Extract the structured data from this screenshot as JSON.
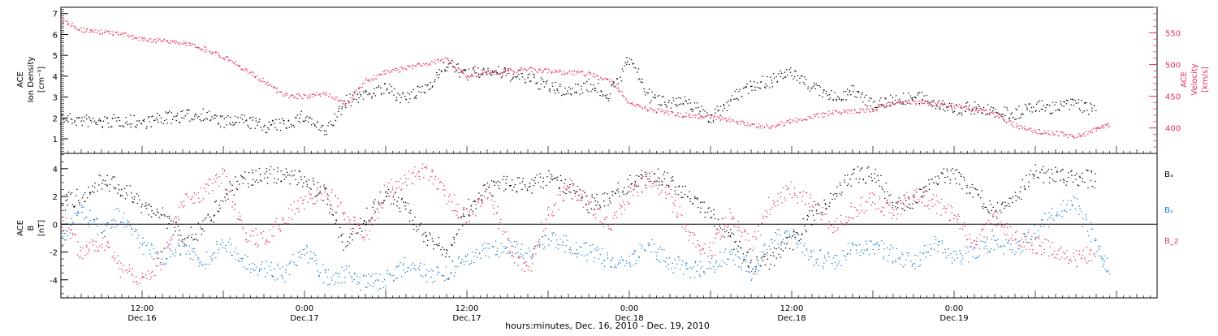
{
  "chart_data": [
    {
      "type": "scatter",
      "panel": "solar-wind",
      "ylabel_left": [
        "ACE",
        "Ion Density",
        "[cm⁻³]"
      ],
      "ylabel_right": [
        "ACE",
        "Velocity",
        "[km/s]"
      ],
      "ylim_left": [
        0.3,
        7.3
      ],
      "ylim_right": [
        360,
        590
      ],
      "yticks_left": [
        1,
        2,
        3,
        4,
        5,
        6,
        7
      ],
      "yticks_right": [
        400,
        450,
        500,
        550
      ],
      "series": [
        {
          "axis": "left",
          "color": "#000000",
          "points": [
            [
              0,
              2
            ],
            [
              3,
              1.9
            ],
            [
              6,
              1.8
            ],
            [
              9,
              1.9
            ],
            [
              12,
              1.8
            ],
            [
              15,
              2
            ],
            [
              18,
              2.1
            ],
            [
              21,
              2.2
            ],
            [
              24,
              1.8
            ],
            [
              27,
              1.9
            ],
            [
              30,
              1.6
            ],
            [
              33,
              1.7
            ],
            [
              36,
              2.1
            ],
            [
              39,
              1.3
            ],
            [
              42,
              2.8
            ],
            [
              45,
              3.2
            ],
            [
              48,
              3.4
            ],
            [
              51,
              2.9
            ],
            [
              54,
              3.5
            ],
            [
              57,
              4.6
            ],
            [
              60,
              4.1
            ],
            [
              63,
              4.3
            ],
            [
              66,
              4.1
            ],
            [
              69,
              3.9
            ],
            [
              72,
              3.5
            ],
            [
              75,
              3.3
            ],
            [
              78,
              3.6
            ],
            [
              81,
              3.1
            ],
            [
              84,
              4.9
            ],
            [
              87,
              3
            ],
            [
              90,
              2.8
            ],
            [
              93,
              2.7
            ],
            [
              96,
              2
            ],
            [
              99,
              2.9
            ],
            [
              102,
              3.6
            ],
            [
              105,
              3.8
            ],
            [
              108,
              4.2
            ],
            [
              111,
              3.5
            ],
            [
              114,
              3
            ],
            [
              117,
              3.3
            ],
            [
              120,
              2.7
            ],
            [
              123,
              2.9
            ],
            [
              126,
              3
            ],
            [
              129,
              2.8
            ],
            [
              132,
              2.4
            ],
            [
              135,
              2.5
            ],
            [
              138,
              2.3
            ],
            [
              141,
              2.2
            ],
            [
              144,
              2.6
            ],
            [
              147,
              2.5
            ],
            [
              150,
              2.7
            ],
            [
              153,
              2.3
            ]
          ]
        },
        {
          "axis": "right",
          "color": "#e8305d",
          "points": [
            [
              0,
              570
            ],
            [
              3,
              555
            ],
            [
              6,
              552
            ],
            [
              9,
              548
            ],
            [
              12,
              540
            ],
            [
              15,
              538
            ],
            [
              18,
              535
            ],
            [
              21,
              526
            ],
            [
              24,
              513
            ],
            [
              27,
              494
            ],
            [
              30,
              473
            ],
            [
              33,
              452
            ],
            [
              36,
              450
            ],
            [
              39,
              455
            ],
            [
              42,
              438
            ],
            [
              45,
              475
            ],
            [
              48,
              488
            ],
            [
              51,
              495
            ],
            [
              54,
              502
            ],
            [
              57,
              508
            ],
            [
              60,
              482
            ],
            [
              63,
              487
            ],
            [
              66,
              490
            ],
            [
              69,
              493
            ],
            [
              72,
              490
            ],
            [
              75,
              488
            ],
            [
              78,
              485
            ],
            [
              81,
              476
            ],
            [
              84,
              440
            ],
            [
              87,
              430
            ],
            [
              90,
              423
            ],
            [
              93,
              420
            ],
            [
              96,
              418
            ],
            [
              99,
              413
            ],
            [
              102,
              405
            ],
            [
              105,
              403
            ],
            [
              108,
              412
            ],
            [
              111,
              418
            ],
            [
              114,
              425
            ],
            [
              117,
              427
            ],
            [
              120,
              430
            ],
            [
              123,
              440
            ],
            [
              126,
              442
            ],
            [
              129,
              438
            ],
            [
              132,
              435
            ],
            [
              135,
              430
            ],
            [
              138,
              423
            ],
            [
              141,
              405
            ],
            [
              144,
              396
            ],
            [
              147,
              392
            ],
            [
              150,
              387
            ],
            [
              153,
              398
            ],
            [
              155,
              407
            ]
          ]
        }
      ]
    },
    {
      "type": "scatter",
      "panel": "magnetic-field",
      "ylabel": [
        "ACE",
        "B",
        "[nT]"
      ],
      "ylim": [
        -5.3,
        5.1
      ],
      "yticks": [
        -4,
        -2,
        0,
        2,
        4
      ],
      "zero_line": true,
      "legend": [
        "Bₓ",
        "Bᵧ",
        "B_z"
      ],
      "series": [
        {
          "name": "Bₓ",
          "color": "#000000",
          "points": [
            [
              0,
              1.6
            ],
            [
              3,
              2
            ],
            [
              6,
              3.2
            ],
            [
              9,
              2.6
            ],
            [
              12,
              1.5
            ],
            [
              15,
              0.6
            ],
            [
              18,
              -1
            ],
            [
              21,
              -0.3
            ],
            [
              24,
              2.2
            ],
            [
              27,
              3.3
            ],
            [
              30,
              3.5
            ],
            [
              33,
              3.6
            ],
            [
              36,
              3.3
            ],
            [
              39,
              2
            ],
            [
              42,
              -1.5
            ],
            [
              45,
              0.5
            ],
            [
              48,
              2.3
            ],
            [
              51,
              1
            ],
            [
              54,
              -1
            ],
            [
              57,
              -2
            ],
            [
              60,
              1.2
            ],
            [
              63,
              2.5
            ],
            [
              66,
              3
            ],
            [
              69,
              2.8
            ],
            [
              72,
              3.3
            ],
            [
              75,
              2.7
            ],
            [
              78,
              1.5
            ],
            [
              81,
              2
            ],
            [
              84,
              3
            ],
            [
              87,
              3.6
            ],
            [
              90,
              3.2
            ],
            [
              93,
              1.9
            ],
            [
              96,
              0.9
            ],
            [
              99,
              -1
            ],
            [
              102,
              -3
            ],
            [
              105,
              -2.5
            ],
            [
              108,
              -1.2
            ],
            [
              111,
              0.6
            ],
            [
              114,
              2
            ],
            [
              117,
              3.5
            ],
            [
              120,
              3.7
            ],
            [
              123,
              1.5
            ],
            [
              126,
              1.6
            ],
            [
              129,
              3.2
            ],
            [
              132,
              3.6
            ],
            [
              135,
              2.4
            ],
            [
              138,
              1
            ],
            [
              141,
              2
            ],
            [
              144,
              3.7
            ],
            [
              147,
              3.5
            ],
            [
              150,
              3.4
            ],
            [
              153,
              3.2
            ]
          ]
        },
        {
          "name": "Bᵧ",
          "color": "#1a7ad4",
          "points": [
            [
              0,
              -1
            ],
            [
              3,
              1
            ],
            [
              6,
              -0.5
            ],
            [
              9,
              0.8
            ],
            [
              12,
              -1.5
            ],
            [
              15,
              -2.5
            ],
            [
              18,
              -1.5
            ],
            [
              21,
              -2.8
            ],
            [
              24,
              -1.2
            ],
            [
              27,
              -2.8
            ],
            [
              30,
              -3.2
            ],
            [
              33,
              -3.5
            ],
            [
              36,
              -1.8
            ],
            [
              39,
              -3.8
            ],
            [
              42,
              -3.5
            ],
            [
              45,
              -4.2
            ],
            [
              48,
              -4
            ],
            [
              51,
              -2.8
            ],
            [
              54,
              -3.6
            ],
            [
              57,
              -3.5
            ],
            [
              60,
              -2.5
            ],
            [
              63,
              -1.8
            ],
            [
              66,
              -1.6
            ],
            [
              69,
              -2.2
            ],
            [
              72,
              -1
            ],
            [
              75,
              -1.5
            ],
            [
              78,
              -2
            ],
            [
              81,
              -2.5
            ],
            [
              84,
              -2.6
            ],
            [
              87,
              -1.5
            ],
            [
              90,
              -2.8
            ],
            [
              93,
              -3.2
            ],
            [
              96,
              -3
            ],
            [
              99,
              -2
            ],
            [
              102,
              -3.5
            ],
            [
              105,
              -1.2
            ],
            [
              108,
              -0.5
            ],
            [
              111,
              -2.3
            ],
            [
              114,
              -2.7
            ],
            [
              117,
              -1.8
            ],
            [
              120,
              -1.5
            ],
            [
              123,
              -2.2
            ],
            [
              126,
              -2.8
            ],
            [
              129,
              -1.5
            ],
            [
              132,
              -2.3
            ],
            [
              135,
              -2
            ],
            [
              138,
              -1.4
            ],
            [
              141,
              -1.8
            ],
            [
              144,
              -0.5
            ],
            [
              147,
              1
            ],
            [
              150,
              1.5
            ],
            [
              153,
              -1.5
            ],
            [
              155,
              -3.3
            ]
          ]
        },
        {
          "name": "B_z",
          "color": "#e8305d",
          "points": [
            [
              0,
              0.5
            ],
            [
              3,
              -2.2
            ],
            [
              6,
              -1.2
            ],
            [
              9,
              -3.3
            ],
            [
              12,
              -3.8
            ],
            [
              15,
              -2.5
            ],
            [
              18,
              1.7
            ],
            [
              21,
              2.4
            ],
            [
              24,
              3.5
            ],
            [
              27,
              -0.5
            ],
            [
              30,
              -1.2
            ],
            [
              33,
              0.5
            ],
            [
              36,
              1.8
            ],
            [
              39,
              2.5
            ],
            [
              42,
              0.5
            ],
            [
              45,
              -0.8
            ],
            [
              48,
              2.5
            ],
            [
              51,
              3.2
            ],
            [
              54,
              4
            ],
            [
              57,
              2
            ],
            [
              60,
              0.5
            ],
            [
              63,
              2.5
            ],
            [
              66,
              -1.5
            ],
            [
              69,
              -3.3
            ],
            [
              72,
              0.8
            ],
            [
              75,
              2.8
            ],
            [
              78,
              1.5
            ],
            [
              81,
              0
            ],
            [
              84,
              2
            ],
            [
              87,
              3.4
            ],
            [
              90,
              2
            ],
            [
              93,
              -1
            ],
            [
              96,
              -2
            ],
            [
              99,
              0.8
            ],
            [
              102,
              -1.5
            ],
            [
              105,
              1.7
            ],
            [
              108,
              2.5
            ],
            [
              111,
              1.5
            ],
            [
              114,
              0
            ],
            [
              117,
              1
            ],
            [
              120,
              1.8
            ],
            [
              123,
              0.8
            ],
            [
              126,
              2.2
            ],
            [
              129,
              1.6
            ],
            [
              132,
              0.5
            ],
            [
              135,
              -1.5
            ],
            [
              138,
              0.5
            ],
            [
              141,
              -1
            ],
            [
              144,
              -1.5
            ],
            [
              147,
              -1.8
            ],
            [
              150,
              -2.5
            ],
            [
              153,
              -2
            ]
          ]
        }
      ]
    }
  ],
  "x_axis": {
    "range": [
      0,
      162
    ],
    "ticks": [
      {
        "x": 12,
        "time": "12:00",
        "date": "Dec.16"
      },
      {
        "x": 36,
        "time": "0:00",
        "date": "Dec.17"
      },
      {
        "x": 60,
        "time": "12:00",
        "date": "Dec.17"
      },
      {
        "x": 84,
        "time": "0:00",
        "date": "Dec.18"
      },
      {
        "x": 108,
        "time": "12:00",
        "date": "Dec.18"
      },
      {
        "x": 132,
        "time": "0:00",
        "date": "Dec.19"
      }
    ],
    "title": "hours:minutes, Dec. 16, 2010 - Dec. 19, 2010"
  }
}
